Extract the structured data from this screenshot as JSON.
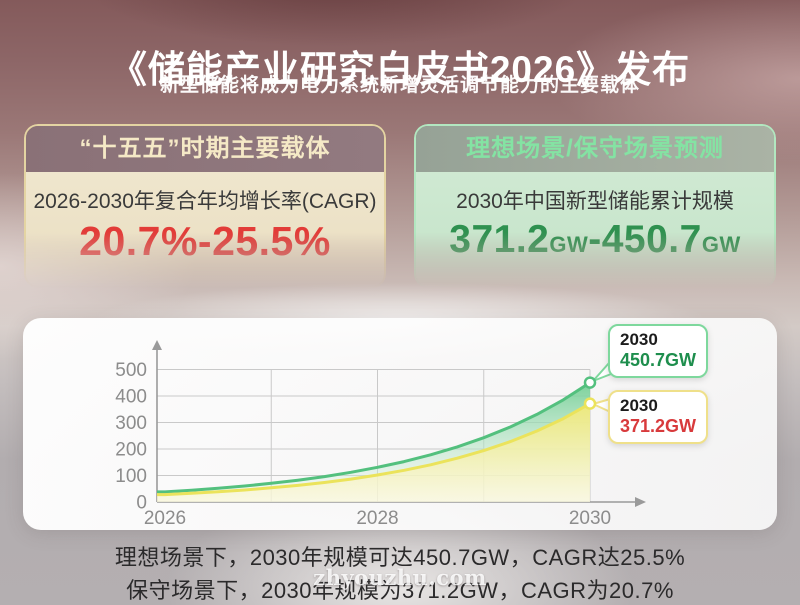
{
  "header": {
    "title": "《储能产业研究白皮书2026》发布",
    "subtitle": "新型储能将成为电力系统新增灵活调节能力的主要载体",
    "watermark": "zhyouzhu.com"
  },
  "cards": {
    "left": {
      "header": "“十五五”时期主要载体",
      "label": "2026-2030年复合年均增长率(CAGR)",
      "value": "20.7%-25.5%",
      "value_color": "#e23c38",
      "header_text_color": "#f5e9c6",
      "header_bg_color": "#8d747a",
      "body_bg_color": "#ede3c8",
      "border_color": "#e4d4a2"
    },
    "right": {
      "header": "理想场景/保守场景预测",
      "label": "2030年中国新型储能累计规模",
      "value_num1": "371.2",
      "value_unit1": "GW",
      "value_num2": "-450.7",
      "value_unit2": "GW",
      "value_color": "#2f9150",
      "header_text_color": "#84e3a3",
      "header_bg_color": "#9ca89c",
      "body_bg_color": "#cde8d0",
      "border_color": "#b2e7c0"
    }
  },
  "chart_data": {
    "type": "area",
    "title": "",
    "xlabel": "",
    "ylabel": "",
    "x": [
      2026,
      2026.25,
      2026.5,
      2026.75,
      2027,
      2027.25,
      2027.5,
      2027.75,
      2028,
      2028.25,
      2028.5,
      2028.75,
      2029,
      2029.25,
      2029.5,
      2029.75,
      2030
    ],
    "series": [
      {
        "name": "理想场景",
        "values": [
          38,
          44.4,
          51.8,
          60.4,
          70.5,
          82.3,
          96,
          112.1,
          130.8,
          152.6,
          178.1,
          207.9,
          242.6,
          283.1,
          330.4,
          385.6,
          450.7
        ],
        "line_color": "#53c07e",
        "fill_top": "#74cf95",
        "fill_bottom": "#eaf5ec",
        "callout_border": "#7ed89d",
        "end_label": {
          "year": "2030",
          "value": "450.7GW"
        }
      },
      {
        "name": "保守场景",
        "values": [
          28,
          32.9,
          38.7,
          45.4,
          53.4,
          62.7,
          73.7,
          86.6,
          101.8,
          119.6,
          140.5,
          165.1,
          194,
          228,
          267.9,
          314.8,
          371.2
        ],
        "line_color": "#ebe35b",
        "fill_top": "#f1e97a",
        "fill_bottom": "#fbf8dc",
        "callout_border": "#efe08a",
        "end_label": {
          "year": "2030",
          "value": "371.2GW"
        }
      }
    ],
    "x_ticks": [
      "2026",
      "2028",
      "2030"
    ],
    "x_tick_years": [
      2026,
      2028,
      2030
    ],
    "y_ticks": [
      0,
      100,
      200,
      300,
      400,
      500
    ],
    "xlim": [
      2026,
      2030
    ],
    "ylim": [
      0,
      530
    ],
    "grid": true,
    "legend_position": "none",
    "tick_color": "#8c8c8c",
    "grid_color": "#c9c9c9",
    "axis_color": "#9a9a9a"
  },
  "footer": {
    "line1": "理想场景下，2030年规模可达450.7GW，CAGR达25.5%",
    "line2": "保守场景下，2030年规模为371.2GW，CAGR为20.7%"
  }
}
